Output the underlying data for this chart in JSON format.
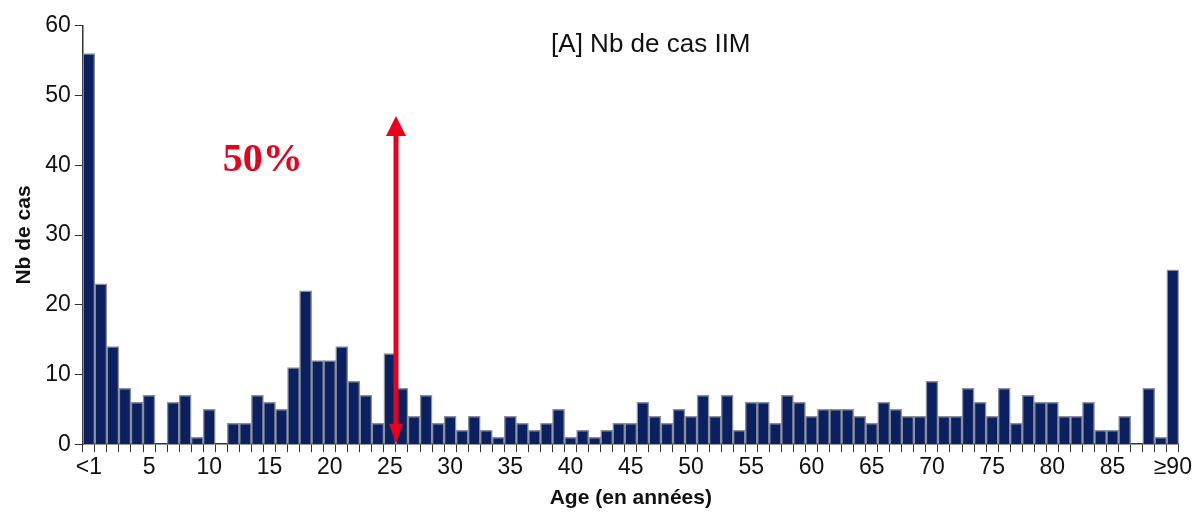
{
  "chart_data": {
    "type": "bar",
    "title": "[A] Nb de cas IIM",
    "xlabel": "Age (en années)",
    "ylabel": "Nb de cas",
    "categories": [
      "<1",
      null,
      null,
      null,
      null,
      "5",
      null,
      null,
      null,
      null,
      "10",
      null,
      null,
      null,
      null,
      "15",
      null,
      null,
      null,
      null,
      "20",
      null,
      null,
      null,
      null,
      "25",
      null,
      null,
      null,
      null,
      "30",
      null,
      null,
      null,
      null,
      "35",
      null,
      null,
      null,
      null,
      "40",
      null,
      null,
      null,
      null,
      "45",
      null,
      null,
      null,
      null,
      "50",
      null,
      null,
      null,
      null,
      "55",
      null,
      null,
      null,
      null,
      "60",
      null,
      null,
      null,
      null,
      "65",
      null,
      null,
      null,
      null,
      "70",
      null,
      null,
      null,
      null,
      "75",
      null,
      null,
      null,
      null,
      "80",
      null,
      null,
      null,
      null,
      "85",
      null,
      null,
      null,
      null,
      "≥90"
    ],
    "values": [
      56,
      23,
      14,
      8,
      6,
      7,
      0,
      6,
      7,
      1,
      5,
      0,
      3,
      3,
      7,
      6,
      5,
      11,
      22,
      12,
      12,
      14,
      9,
      7,
      3,
      13,
      8,
      4,
      7,
      3,
      4,
      2,
      4,
      2,
      1,
      4,
      3,
      2,
      3,
      5,
      1,
      2,
      1,
      2,
      3,
      3,
      6,
      4,
      3,
      5,
      4,
      7,
      4,
      7,
      2,
      6,
      6,
      3,
      7,
      6,
      4,
      5,
      5,
      5,
      4,
      3,
      6,
      5,
      4,
      4,
      9,
      4,
      4,
      8,
      6,
      4,
      8,
      3,
      7,
      6,
      6,
      4,
      4,
      6,
      2,
      2,
      4,
      0,
      8,
      1,
      25
    ],
    "color": "#0a2060",
    "ylim": [
      0,
      60
    ],
    "yticks": [
      0,
      10,
      20,
      30,
      40,
      50,
      60
    ],
    "grid": false,
    "legend": false,
    "annotations": [
      "50%"
    ]
  }
}
